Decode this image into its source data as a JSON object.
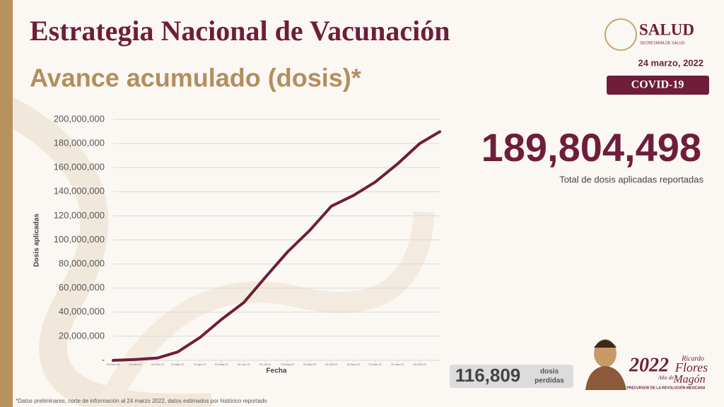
{
  "header": {
    "title": "Estrategia Nacional de Vacunación",
    "subtitle": "Avance acumulado (dosis)*",
    "logo": "SALUD",
    "logo_sub": "SECRETARÍA DE SALUD",
    "date": "24 marzo, 2022",
    "badge": "COVID-19"
  },
  "total": {
    "value": "189,804,498",
    "caption": "Total de dosis aplicadas reportadas"
  },
  "lost": {
    "value": "116,809",
    "line1": "dosis",
    "line2": "perdidas"
  },
  "footer": "*Datos preliminares, corte de información al 24 marzo 2022, datos estimados por histórico reportado",
  "emblem": {
    "year": "2022",
    "ano": "Año de",
    "name1": "Ricardo",
    "name2": "Flores",
    "name3": "Magón",
    "motto": "PRECURSOR DE LA REVOLUCIÓN MEXICANA"
  },
  "chart_data": {
    "type": "line",
    "y_label": "Dosis aplicadas",
    "x_label": "Fecha",
    "color": "#6f1d3a",
    "grid": true,
    "x": [
      "24-Dec-20",
      "24-Jan-21",
      "24-Feb-21",
      "24-Mar-21",
      "24-Apr-21",
      "24-May-21",
      "24-Jun-21",
      "24-Jul-21",
      "24-Aug-21",
      "24-Sep-21",
      "24-Oct-21",
      "24-Nov-21",
      "24-Dec-21",
      "24-Jan-22",
      "24-Feb-22",
      "24-Mar-22"
    ],
    "values": [
      0,
      700000,
      2000000,
      7000000,
      19000000,
      34000000,
      48000000,
      69000000,
      90000000,
      108000000,
      128000000,
      137000000,
      148000000,
      163000000,
      180000000,
      189804498
    ],
    "xlim": [
      "24-Dec-20",
      "24-Mar-22"
    ],
    "xticks": [
      "24-Dec-20",
      "24-Jan-21",
      "24-Feb-21",
      "24-Mar-21",
      "24-Apr-21",
      "24-May-21",
      "24-Jun-21",
      "24-Jul-21",
      "24-Aug-21",
      "24-Sep-21",
      "24-Oct-21",
      "24-Nov-21",
      "24-Dec-21",
      "24-Jan-22",
      "24-Feb-22"
    ],
    "ylim": [
      0,
      200000000
    ],
    "yticks": [
      {
        "value": 0,
        "label": "-"
      },
      {
        "value": 20000000,
        "label": "20,000,000"
      },
      {
        "value": 40000000,
        "label": "40,000,000"
      },
      {
        "value": 60000000,
        "label": "60,000,000"
      },
      {
        "value": 80000000,
        "label": "80,000,000"
      },
      {
        "value": 100000000,
        "label": "100,000,000"
      },
      {
        "value": 120000000,
        "label": "120,000,000"
      },
      {
        "value": 140000000,
        "label": "140,000,000"
      },
      {
        "value": 160000000,
        "label": "160,000,000"
      },
      {
        "value": 180000000,
        "label": "180,000,000"
      },
      {
        "value": 200000000,
        "label": "200,000,000"
      }
    ]
  }
}
